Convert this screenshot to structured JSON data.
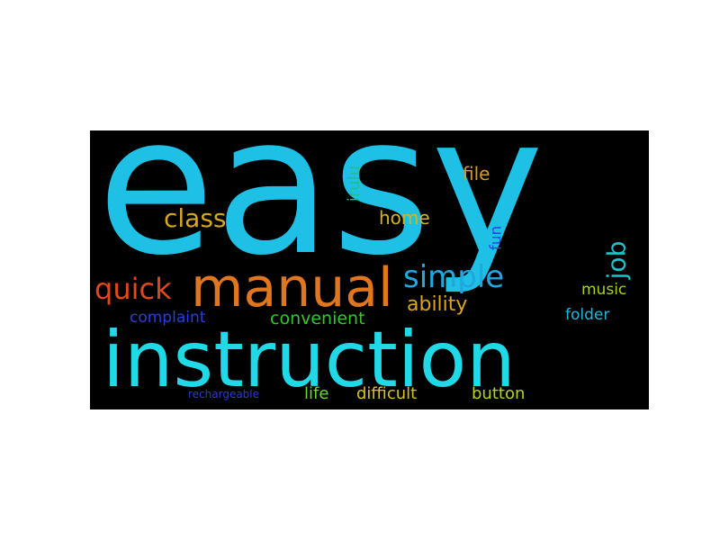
{
  "wordcloud": {
    "background": "#000000",
    "words": [
      {
        "id": "easy",
        "text": "easy",
        "color": "#1ec0e6"
      },
      {
        "id": "instruction",
        "text": "instruction",
        "color": "#20d8e6"
      },
      {
        "id": "manual",
        "text": "manual",
        "color": "#e0761e"
      },
      {
        "id": "simple",
        "text": "simple",
        "color": "#22a6e0"
      },
      {
        "id": "quick",
        "text": "quick",
        "color": "#e0471c"
      },
      {
        "id": "class",
        "text": "class",
        "color": "#d8a81c"
      },
      {
        "id": "home",
        "text": "home",
        "color": "#d0b61e"
      },
      {
        "id": "file",
        "text": "file",
        "color": "#d89a1c"
      },
      {
        "id": "irulu",
        "text": "irulu",
        "color": "#1ec08a"
      },
      {
        "id": "fun",
        "text": "fun",
        "color": "#2a46e6"
      },
      {
        "id": "job",
        "text": "job",
        "color": "#22c0c8"
      },
      {
        "id": "ability",
        "text": "ability",
        "color": "#dca41e"
      },
      {
        "id": "music",
        "text": "music",
        "color": "#a8d01e"
      },
      {
        "id": "folder",
        "text": "folder",
        "color": "#22b6dc"
      },
      {
        "id": "complaint",
        "text": "complaint",
        "color": "#2a3ee0"
      },
      {
        "id": "convenient",
        "text": "convenient",
        "color": "#32c82c"
      },
      {
        "id": "life",
        "text": "life",
        "color": "#6ad82a"
      },
      {
        "id": "difficult",
        "text": "difficult",
        "color": "#d8c21e"
      },
      {
        "id": "button",
        "text": "button",
        "color": "#b8d21e"
      },
      {
        "id": "rechargeable",
        "text": "rechargeable",
        "color": "#2a3ad8"
      }
    ]
  }
}
